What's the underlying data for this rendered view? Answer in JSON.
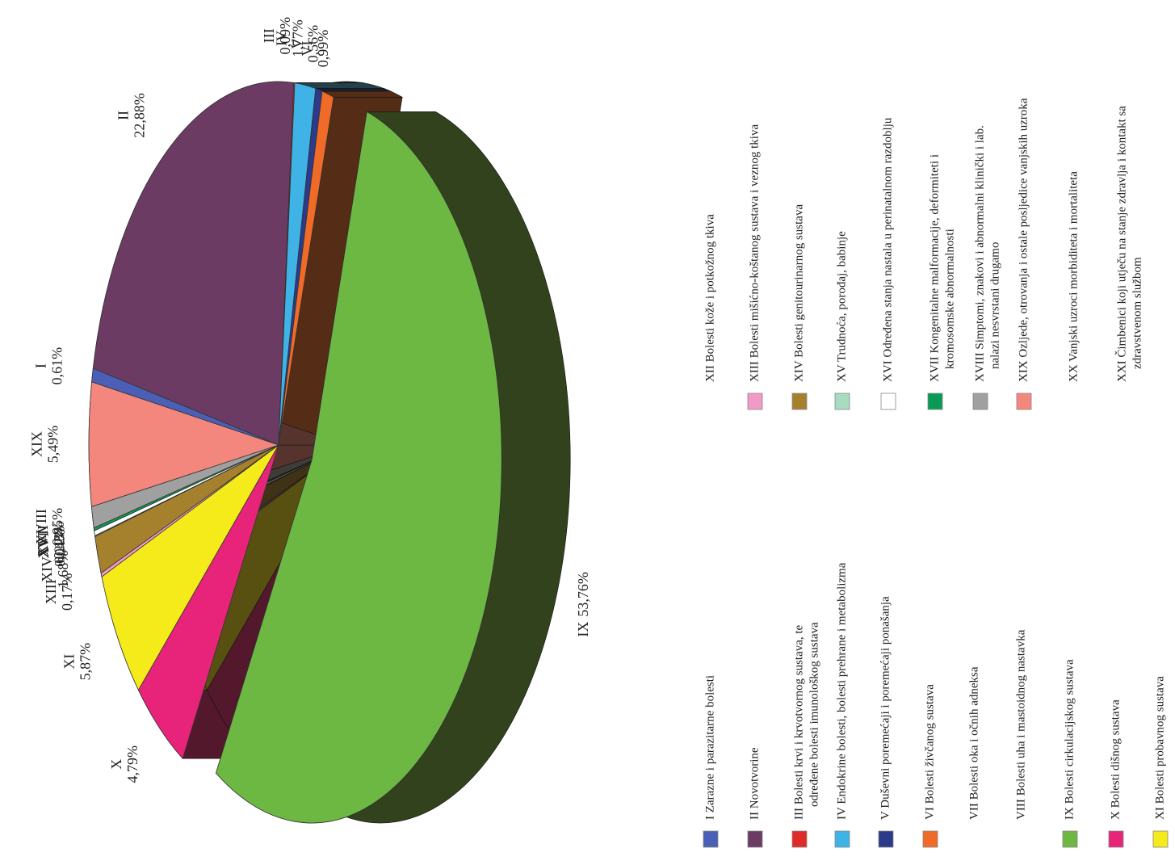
{
  "chart_data": {
    "type": "pie",
    "categories": [
      "I",
      "II",
      "III",
      "IV",
      "V",
      "VI",
      "IX",
      "X",
      "XI",
      "XIII",
      "XIV",
      "XV",
      "XVI",
      "XVII",
      "XVIII",
      "XIX"
    ],
    "values": [
      0.61,
      22.88,
      0.09,
      1.77,
      0.56,
      0.99,
      53.76,
      4.79,
      5.87,
      0.17,
      1.68,
      0.04,
      0.22,
      0.13,
      0.95,
      5.49
    ],
    "value_labels": [
      "0,61%",
      "22,88%",
      "0,09%",
      "1,77%",
      "0,56%",
      "0,99%",
      "53,76%",
      "4,79%",
      "5,87%",
      "0,17%",
      "1,68%",
      "0,04%",
      "0,22%",
      "0,13%",
      "0,95%",
      "5,49%"
    ],
    "colors": [
      "#4a5fb5",
      "#6b3b63",
      "#e02b2b",
      "#3fb3e6",
      "#2b3a8a",
      "#f06a28",
      "#6db843",
      "#e8237a",
      "#f5ea1a",
      "#f29ac6",
      "#a5812e",
      "#a8dcc0",
      "#ffffff",
      "#0b9a55",
      "#a0a0a0",
      "#f4877d"
    ],
    "legend": [
      {
        "lines": [
          "I Zarazne i parazitarne bolesti"
        ],
        "color": "#4a5fb5"
      },
      {
        "lines": [
          "II Novotvorine"
        ],
        "color": "#6b3b63"
      },
      {
        "lines": [
          "III Bolesti krvi i krvotvornog sustava, te",
          "određene bolesti imunološkog sustava"
        ],
        "color": "#e02b2b"
      },
      {
        "lines": [
          "IV Endokrine bolesti, bolesti prehrane i metabolizma"
        ],
        "color": "#3fb3e6"
      },
      {
        "lines": [
          "V Duševni poremećaji i poremećaji ponašanja"
        ],
        "color": "#2b3a8a"
      },
      {
        "lines": [
          "VI Bolesti živčanog sustava"
        ],
        "color": "#f06a28"
      },
      {
        "lines": [
          "VII Bolesti oka i očnih adneksa"
        ]
      },
      {
        "lines": [
          "VIII Bolesti uha i mastoidnog nastavka"
        ]
      },
      {
        "lines": [
          "IX Bolesti cirkulacijskog sustava"
        ],
        "color": "#6db843"
      },
      {
        "lines": [
          "X Bolesti dišnog sustava"
        ],
        "color": "#e8237a"
      },
      {
        "lines": [
          "XI Bolesti probavnog sustava"
        ],
        "color": "#f5ea1a"
      },
      {
        "lines": [
          "XII Bolesti kože i potkožnog tkiva"
        ]
      },
      {
        "lines": [
          "XIII Bolesti mišićno-koštanog sustava i veznog tkiva"
        ],
        "color": "#f29ac6"
      },
      {
        "lines": [
          "XIV Bolesti genitourinarnog sustava"
        ],
        "color": "#a5812e"
      },
      {
        "lines": [
          "XV Trudnoća, porođaj, babinje"
        ],
        "color": "#a8dcc0"
      },
      {
        "lines": [
          "XVI Određena stanja nastala u perinatalnom razdoblju"
        ],
        "color": "#ffffff"
      },
      {
        "lines": [
          "XVII Kongenitalne malformacije, deformiteti i",
          "kromosomske abnormalnosti"
        ],
        "color": "#0b9a55"
      },
      {
        "lines": [
          "XVIII Simptomi, znakovi i abnormalni klinički i lab.",
          "nalazi nesvrstani drugamo"
        ],
        "color": "#a0a0a0"
      },
      {
        "lines": [
          "XIX Ozljede, otrovanja i ostale posljedice vanjskih uzroka"
        ],
        "color": "#f4877d"
      },
      {
        "lines": [
          "XX Vanjski uzroci morbiditeta i mortaliteta"
        ]
      },
      {
        "lines": [
          "XXI Čimbenici koji utječu na stanje zdravlja i kontakt sa",
          "zdravstvenom službom"
        ]
      }
    ]
  }
}
